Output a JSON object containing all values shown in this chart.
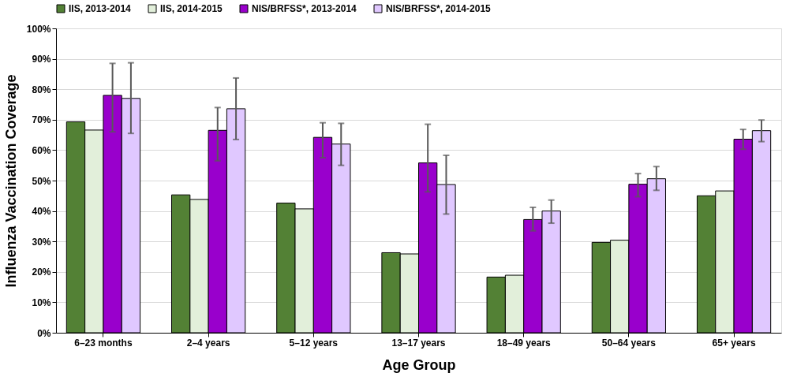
{
  "chart_data": {
    "type": "bar",
    "xlabel": "Age Group",
    "ylabel": "Influenza Vaccination Coverage",
    "categories": [
      "6–23 months",
      "2–4 years",
      "5–12 years",
      "13–17 years",
      "18–49 years",
      "50–64 years",
      "65+ years"
    ],
    "series": [
      {
        "name": "IIS, 2013-2014",
        "color": "#538135",
        "values": [
          69.3,
          45.3,
          42.6,
          26.3,
          18.3,
          29.7,
          45.0
        ]
      },
      {
        "name": "IIS, 2014-2015",
        "color": "#e2efda",
        "values": [
          66.6,
          43.8,
          40.7,
          25.9,
          18.9,
          30.4,
          46.6
        ]
      },
      {
        "name": "NIS/BRFSS*, 2013-2014",
        "color": "#9900cc",
        "values": [
          78.0,
          66.5,
          64.2,
          55.8,
          37.2,
          48.8,
          63.6
        ],
        "errors": [
          [
            66.0,
            88.5
          ],
          [
            56.5,
            74.0
          ],
          [
            57.5,
            69.0
          ],
          [
            46.3,
            68.5
          ],
          [
            33.5,
            41.2
          ],
          [
            44.7,
            52.3
          ],
          [
            60.3,
            66.8
          ]
        ]
      },
      {
        "name": "NIS/BRFSS*, 2014-2015",
        "color": "#e0c8ff",
        "values": [
          77.0,
          73.6,
          62.0,
          48.7,
          40.0,
          50.6,
          66.4
        ],
        "errors": [
          [
            65.5,
            88.7
          ],
          [
            63.5,
            83.7
          ],
          [
            55.0,
            68.8
          ],
          [
            39.0,
            58.3
          ],
          [
            36.0,
            43.6
          ],
          [
            46.8,
            54.6
          ],
          [
            62.8,
            69.9
          ]
        ]
      }
    ],
    "ylim": [
      0,
      100
    ],
    "yticks": [
      {
        "value": 0,
        "label": "0%"
      },
      {
        "value": 10,
        "label": "10%"
      },
      {
        "value": 20,
        "label": "20%"
      },
      {
        "value": 30,
        "label": "30%"
      },
      {
        "value": 40,
        "label": "40%"
      },
      {
        "value": 50,
        "label": "50%"
      },
      {
        "value": 60,
        "label": "60%"
      },
      {
        "value": 70,
        "label": "70%"
      },
      {
        "value": 80,
        "label": "80%"
      },
      {
        "value": 90,
        "label": "90%"
      },
      {
        "value": 100,
        "label": "100%"
      }
    ],
    "grid": "y",
    "legend": "top"
  }
}
